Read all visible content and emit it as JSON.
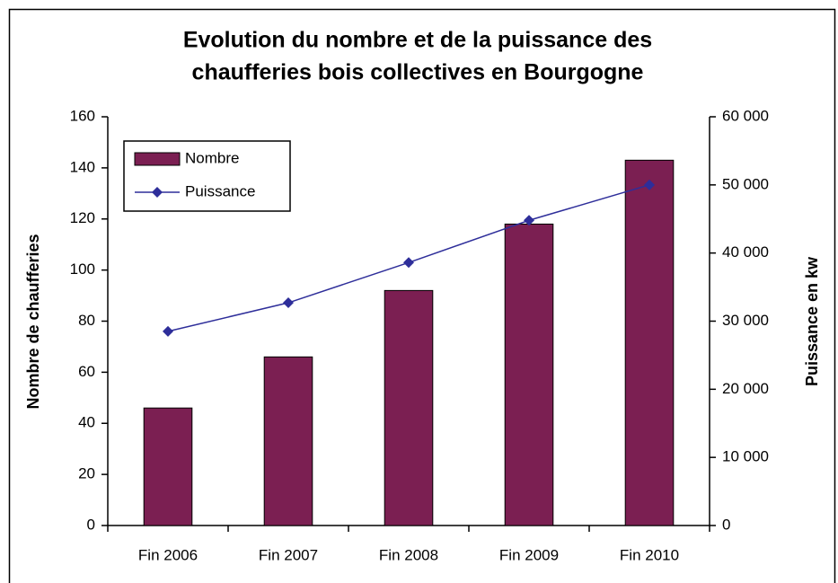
{
  "chart_data": {
    "type": "bar_line",
    "title": [
      "Evolution du nombre et de la puissance des",
      "chaufferies bois collectives en Bourgogne"
    ],
    "y_label": "Nombre de chaufferies",
    "y2_label": "Puissance en kw",
    "categories": [
      "Fin 2006",
      "Fin 2007",
      "Fin 2008",
      "Fin 2009",
      "Fin 2010"
    ],
    "series": [
      {
        "name": "Nombre",
        "type": "bar",
        "color": "#7b1f52",
        "values": [
          46,
          66,
          92,
          118,
          143
        ]
      },
      {
        "name": "Puissance",
        "type": "line",
        "color": "#2e2e9a",
        "axis": "y2",
        "values": [
          28500,
          32700,
          38600,
          44800,
          50000
        ]
      }
    ],
    "ylim": [
      0,
      160
    ],
    "yticks": [
      0,
      20,
      40,
      60,
      80,
      100,
      120,
      140,
      160
    ],
    "y2lim": [
      0,
      60000
    ],
    "y2ticks": [
      0,
      {
        "value": 10000,
        "label": "10 000"
      },
      {
        "value": 20000,
        "label": "20 000"
      },
      {
        "value": 30000,
        "label": "30 000"
      },
      {
        "value": 40000,
        "label": "40 000"
      },
      {
        "value": 50000,
        "label": "50 000"
      },
      {
        "value": 60000,
        "label": "60 000"
      }
    ],
    "legend": "upper left",
    "grid": false
  }
}
